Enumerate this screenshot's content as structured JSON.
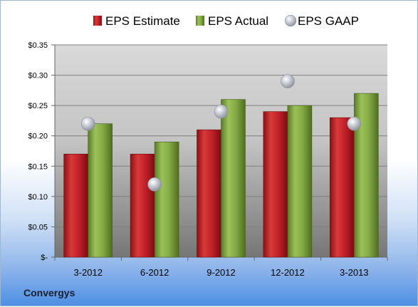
{
  "company": "Convergys",
  "colors": {
    "estimate": "#c9202a",
    "actual": "#7fa840",
    "gaap": "#b8bcc4",
    "plot_top": "#d6d6d6",
    "plot_bottom": "#7a7a7a"
  },
  "chart_data": {
    "type": "bar",
    "title": "",
    "xlabel": "",
    "ylabel": "",
    "categories": [
      "3-2012",
      "6-2012",
      "9-2012",
      "12-2012",
      "3-2013"
    ],
    "series": [
      {
        "name": "EPS Estimate",
        "type": "bar",
        "values": [
          0.17,
          0.17,
          0.21,
          0.24,
          0.23
        ]
      },
      {
        "name": "EPS Actual",
        "type": "bar",
        "values": [
          0.22,
          0.19,
          0.26,
          0.25,
          0.27
        ]
      },
      {
        "name": "EPS GAAP",
        "type": "scatter",
        "values": [
          0.22,
          0.12,
          0.24,
          0.29,
          0.22
        ]
      }
    ],
    "ylim": [
      0,
      0.35
    ],
    "yticks": [
      0,
      0.05,
      0.1,
      0.15,
      0.2,
      0.25,
      0.3,
      0.35
    ],
    "ytick_labels": [
      "$-",
      "$0.05",
      "$0.10",
      "$0.15",
      "$0.20",
      "$0.25",
      "$0.30",
      "$0.35"
    ],
    "grid": true,
    "legend_position": "top"
  }
}
